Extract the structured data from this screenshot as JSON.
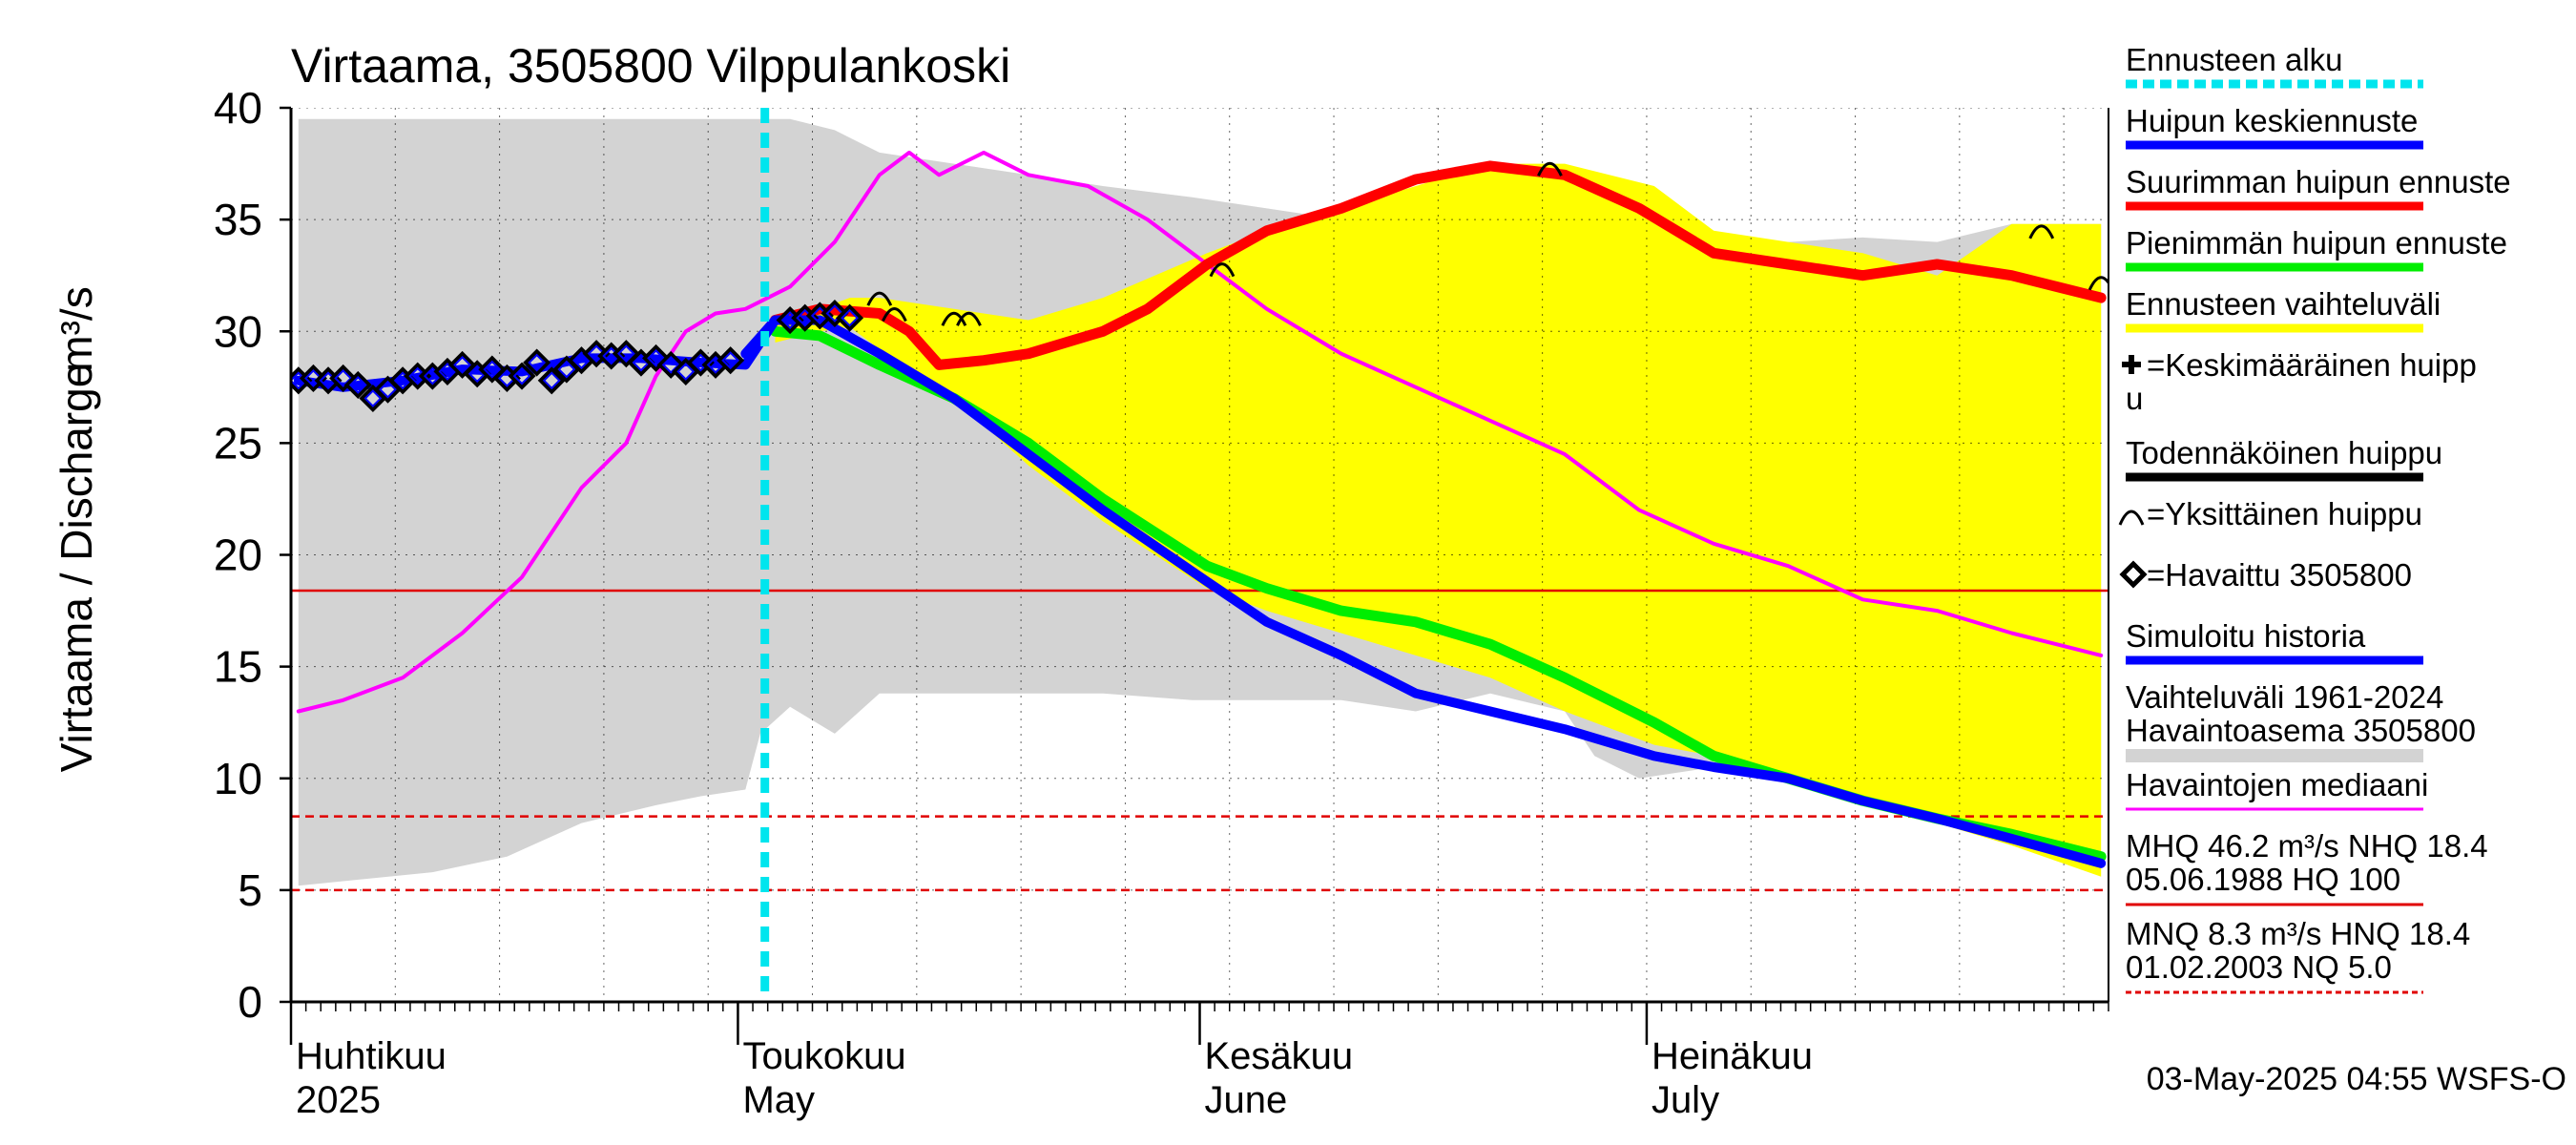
{
  "chart_data": {
    "type": "line",
    "title": "Virtaama, 3505800 Vilppulankoski",
    "ylabel": "Virtaama / Discharge",
    "yunit": "m³/s",
    "ylim": [
      0,
      40
    ],
    "yticks": [
      0,
      5,
      10,
      15,
      20,
      25,
      30,
      35,
      40
    ],
    "xlim": [
      "2025-04-01",
      "2025-07-31"
    ],
    "x_month_labels": [
      {
        "date": "2025-04-01",
        "fi": "Huhtikuu",
        "en": "2025"
      },
      {
        "date": "2025-05-01",
        "fi": "Toukokuu",
        "en": "May"
      },
      {
        "date": "2025-06-01",
        "fi": "Kesäkuu",
        "en": "June"
      },
      {
        "date": "2025-07-01",
        "fi": "Heinäkuu",
        "en": "July"
      }
    ],
    "forecast_start": "2025-05-03",
    "reference_lines": [
      {
        "value": 18.4,
        "style": "solid",
        "color": "#e00000"
      },
      {
        "value": 8.3,
        "style": "dashed",
        "color": "#e00000"
      },
      {
        "value": 5.0,
        "style": "dashed",
        "color": "#e00000"
      }
    ],
    "history_range": {
      "name": "Vaihteluväli 1961-2024 Havaintoasema 3505800",
      "color": "#d3d3d3",
      "x": [
        "2025-04-01",
        "2025-04-10",
        "2025-04-15",
        "2025-04-20",
        "2025-04-25",
        "2025-04-28",
        "2025-05-01",
        "2025-05-02",
        "2025-05-04",
        "2025-05-07",
        "2025-05-10",
        "2025-05-15",
        "2025-05-20",
        "2025-05-25",
        "2025-05-31",
        "2025-06-05",
        "2025-06-10",
        "2025-06-15",
        "2025-06-20",
        "2025-06-25",
        "2025-06-27",
        "2025-06-30",
        "2025-07-05",
        "2025-07-10",
        "2025-07-15",
        "2025-07-20",
        "2025-07-25",
        "2025-07-28",
        "2025-07-31"
      ],
      "low": [
        5.2,
        5.8,
        6.5,
        8.0,
        8.8,
        9.2,
        9.5,
        12.0,
        13.2,
        12.0,
        13.8,
        13.8,
        13.8,
        13.8,
        13.5,
        13.5,
        13.5,
        13.0,
        13.8,
        13.0,
        11.0,
        10.0,
        10.5,
        10.0,
        9.5,
        9.6,
        9.8,
        8.5,
        8.3
      ],
      "high": [
        39.5,
        39.5,
        39.5,
        39.5,
        39.5,
        39.5,
        39.5,
        39.5,
        39.5,
        39.0,
        38.0,
        37.5,
        37.0,
        36.5,
        36.0,
        35.5,
        35.0,
        34.5,
        34.0,
        33.5,
        33.5,
        33.5,
        33.8,
        34.0,
        34.2,
        34.0,
        34.8,
        34.8,
        34.8
      ]
    },
    "forecast_range": {
      "name": "Ennusteen vaihteluväli",
      "color": "#ffff00",
      "x": [
        "2025-05-03",
        "2025-05-06",
        "2025-05-08",
        "2025-05-10",
        "2025-05-15",
        "2025-05-20",
        "2025-05-25",
        "2025-06-01",
        "2025-06-05",
        "2025-06-10",
        "2025-06-15",
        "2025-06-20",
        "2025-06-25",
        "2025-07-01",
        "2025-07-05",
        "2025-07-10",
        "2025-07-15",
        "2025-07-20",
        "2025-07-25",
        "2025-07-31"
      ],
      "low": [
        29.5,
        30.0,
        30.2,
        29.2,
        27.0,
        24.0,
        21.5,
        18.5,
        17.5,
        16.5,
        15.5,
        14.5,
        13.0,
        11.5,
        11.0,
        10.0,
        9.0,
        8.0,
        7.0,
        5.6
      ],
      "high": [
        30.5,
        31.0,
        31.5,
        31.5,
        31.0,
        30.5,
        31.5,
        33.5,
        34.5,
        35.5,
        36.5,
        37.5,
        37.5,
        36.5,
        34.5,
        34.0,
        33.5,
        32.5,
        34.8,
        34.8
      ]
    },
    "series": [
      {
        "name": "Havaintojen mediaani",
        "color": "#ff00ff",
        "x": [
          "2025-04-01",
          "2025-04-04",
          "2025-04-08",
          "2025-04-12",
          "2025-04-16",
          "2025-04-20",
          "2025-04-23",
          "2025-04-25",
          "2025-04-27",
          "2025-04-29",
          "2025-05-01",
          "2025-05-04",
          "2025-05-07",
          "2025-05-10",
          "2025-05-12",
          "2025-05-14",
          "2025-05-17",
          "2025-05-20",
          "2025-05-24",
          "2025-05-28",
          "2025-06-01",
          "2025-06-05",
          "2025-06-10",
          "2025-06-15",
          "2025-06-20",
          "2025-06-25",
          "2025-06-30",
          "2025-07-05",
          "2025-07-10",
          "2025-07-15",
          "2025-07-20",
          "2025-07-25",
          "2025-07-31"
        ],
        "y": [
          13.0,
          13.5,
          14.5,
          16.5,
          19.0,
          23.0,
          25.0,
          28.0,
          30.0,
          30.8,
          31.0,
          32.0,
          34.0,
          37.0,
          38.0,
          37.0,
          38.0,
          37.0,
          36.5,
          35.0,
          33.0,
          31.0,
          29.0,
          27.5,
          26.0,
          24.5,
          22.0,
          20.5,
          19.5,
          18.0,
          17.5,
          16.5,
          15.5
        ]
      },
      {
        "name": "Suurimman huipun ennuste",
        "color": "#ff0000",
        "x": [
          "2025-05-03",
          "2025-05-06",
          "2025-05-10",
          "2025-05-12",
          "2025-05-14",
          "2025-05-17",
          "2025-05-20",
          "2025-05-25",
          "2025-05-28",
          "2025-06-01",
          "2025-06-05",
          "2025-06-10",
          "2025-06-15",
          "2025-06-20",
          "2025-06-25",
          "2025-06-30",
          "2025-07-05",
          "2025-07-10",
          "2025-07-15",
          "2025-07-20",
          "2025-07-25",
          "2025-07-31"
        ],
        "y": [
          30.5,
          31.0,
          30.8,
          30.0,
          28.5,
          28.7,
          29.0,
          30.0,
          31.0,
          33.0,
          34.5,
          35.5,
          36.8,
          37.4,
          37.0,
          35.5,
          33.5,
          33.0,
          32.5,
          33.0,
          32.5,
          31.5
        ]
      },
      {
        "name": "Pienimmän huipun ennuste",
        "color": "#00ee00",
        "x": [
          "2025-05-03",
          "2025-05-06",
          "2025-05-10",
          "2025-05-15",
          "2025-05-20",
          "2025-05-25",
          "2025-06-01",
          "2025-06-05",
          "2025-06-10",
          "2025-06-15",
          "2025-06-20",
          "2025-06-25",
          "2025-07-01",
          "2025-07-05",
          "2025-07-10",
          "2025-07-15",
          "2025-07-20",
          "2025-07-25",
          "2025-07-31"
        ],
        "y": [
          30.0,
          29.8,
          28.5,
          27.0,
          25.0,
          22.5,
          19.5,
          18.5,
          17.5,
          17.0,
          16.0,
          14.5,
          12.5,
          11.0,
          10.0,
          9.0,
          8.2,
          7.5,
          6.5
        ]
      },
      {
        "name": "Huipun keskiennuste",
        "color": "#0000ff",
        "x": [
          "2025-05-01",
          "2025-05-03",
          "2025-05-06",
          "2025-05-10",
          "2025-05-15",
          "2025-05-20",
          "2025-05-25",
          "2025-06-01",
          "2025-06-05",
          "2025-06-10",
          "2025-06-15",
          "2025-06-20",
          "2025-06-25",
          "2025-07-01",
          "2025-07-05",
          "2025-07-10",
          "2025-07-15",
          "2025-07-20",
          "2025-07-25",
          "2025-07-31"
        ],
        "y": [
          29.0,
          30.5,
          30.5,
          29.0,
          27.0,
          24.5,
          22.0,
          18.8,
          17.0,
          15.5,
          13.8,
          13.0,
          12.2,
          11.0,
          10.5,
          10.0,
          9.0,
          8.2,
          7.3,
          6.2
        ]
      },
      {
        "name": "Simuloitu historia",
        "color": "#0000ff",
        "x": [
          "2025-04-01",
          "2025-04-04",
          "2025-04-08",
          "2025-04-12",
          "2025-04-16",
          "2025-04-20",
          "2025-04-24",
          "2025-04-28",
          "2025-05-01",
          "2025-05-02",
          "2025-05-03"
        ],
        "y": [
          27.8,
          27.5,
          27.8,
          28.3,
          28.2,
          28.8,
          28.8,
          28.6,
          28.5,
          29.5,
          30.5
        ]
      }
    ],
    "observed": {
      "name": "Havaittu 3505800",
      "x": [
        "2025-04-01",
        "2025-04-02",
        "2025-04-03",
        "2025-04-04",
        "2025-04-05",
        "2025-04-06",
        "2025-04-07",
        "2025-04-08",
        "2025-04-09",
        "2025-04-10",
        "2025-04-11",
        "2025-04-12",
        "2025-04-13",
        "2025-04-14",
        "2025-04-15",
        "2025-04-16",
        "2025-04-17",
        "2025-04-18",
        "2025-04-19",
        "2025-04-20",
        "2025-04-21",
        "2025-04-22",
        "2025-04-23",
        "2025-04-24",
        "2025-04-25",
        "2025-04-26",
        "2025-04-27",
        "2025-04-28",
        "2025-04-29",
        "2025-04-30",
        "2025-05-04",
        "2025-05-05",
        "2025-05-06",
        "2025-05-07",
        "2025-05-08"
      ],
      "y": [
        27.8,
        27.9,
        27.8,
        27.9,
        27.6,
        27.0,
        27.4,
        27.8,
        28.0,
        28.0,
        28.2,
        28.5,
        28.1,
        28.3,
        27.9,
        28.0,
        28.6,
        27.8,
        28.3,
        28.7,
        29.0,
        28.9,
        29.0,
        28.6,
        28.8,
        28.5,
        28.2,
        28.6,
        28.5,
        28.7,
        30.5,
        30.6,
        30.7,
        30.8,
        30.6
      ]
    },
    "single_peaks": {
      "name": "Yksittäinen huippu",
      "x": [
        "2025-05-10",
        "2025-05-11",
        "2025-05-15",
        "2025-05-16",
        "2025-06-02",
        "2025-06-24",
        "2025-07-27",
        "2025-07-31"
      ],
      "y": [
        31.5,
        30.8,
        30.6,
        30.6,
        32.8,
        37.3,
        34.5,
        32.2
      ]
    },
    "legend": [
      {
        "label": "Ennusteen alku",
        "kind": "dotted",
        "color": "#00e5ee"
      },
      {
        "label": "Huipun keskiennuste",
        "kind": "line",
        "color": "#0000ff"
      },
      {
        "label": "Suurimman huipun ennuste",
        "kind": "line",
        "color": "#ff0000"
      },
      {
        "label": "Pienimmän huipun ennuste",
        "kind": "line",
        "color": "#00ee00"
      },
      {
        "label": "Ennusteen vaihteluväli",
        "kind": "line",
        "color": "#ffff00"
      },
      {
        "label": "=Keskimääräinen huipp",
        "label2": "u",
        "kind": "plus",
        "color": "#000000"
      },
      {
        "label": "Todennäköinen huippu",
        "kind": "line",
        "color": "#000000"
      },
      {
        "label": "=Yksittäinen huippu",
        "kind": "arc",
        "color": "#000000"
      },
      {
        "label": "=Havaittu 3505800",
        "kind": "diamond",
        "color": "#000000"
      },
      {
        "label": "Simuloitu historia",
        "kind": "line",
        "color": "#0000ff"
      },
      {
        "label": "Vaihteluväli 1961-2024",
        "label2": " Havaintoasema 3505800",
        "kind": "thick",
        "color": "#d3d3d3"
      },
      {
        "label": "Havaintojen mediaani",
        "kind": "thin",
        "color": "#ff00ff"
      },
      {
        "label": "MHQ 46.2 m³/s NHQ 18.4",
        "label2": "05.06.1988 HQ  100",
        "kind": "thin",
        "color": "#e00000"
      },
      {
        "label": "MNQ  8.3 m³/s HNQ 18.4",
        "label2": "01.02.2003 NQ  5.0",
        "kind": "dashed",
        "color": "#e00000"
      }
    ],
    "footer": "03-May-2025 04:55 WSFS-O"
  }
}
